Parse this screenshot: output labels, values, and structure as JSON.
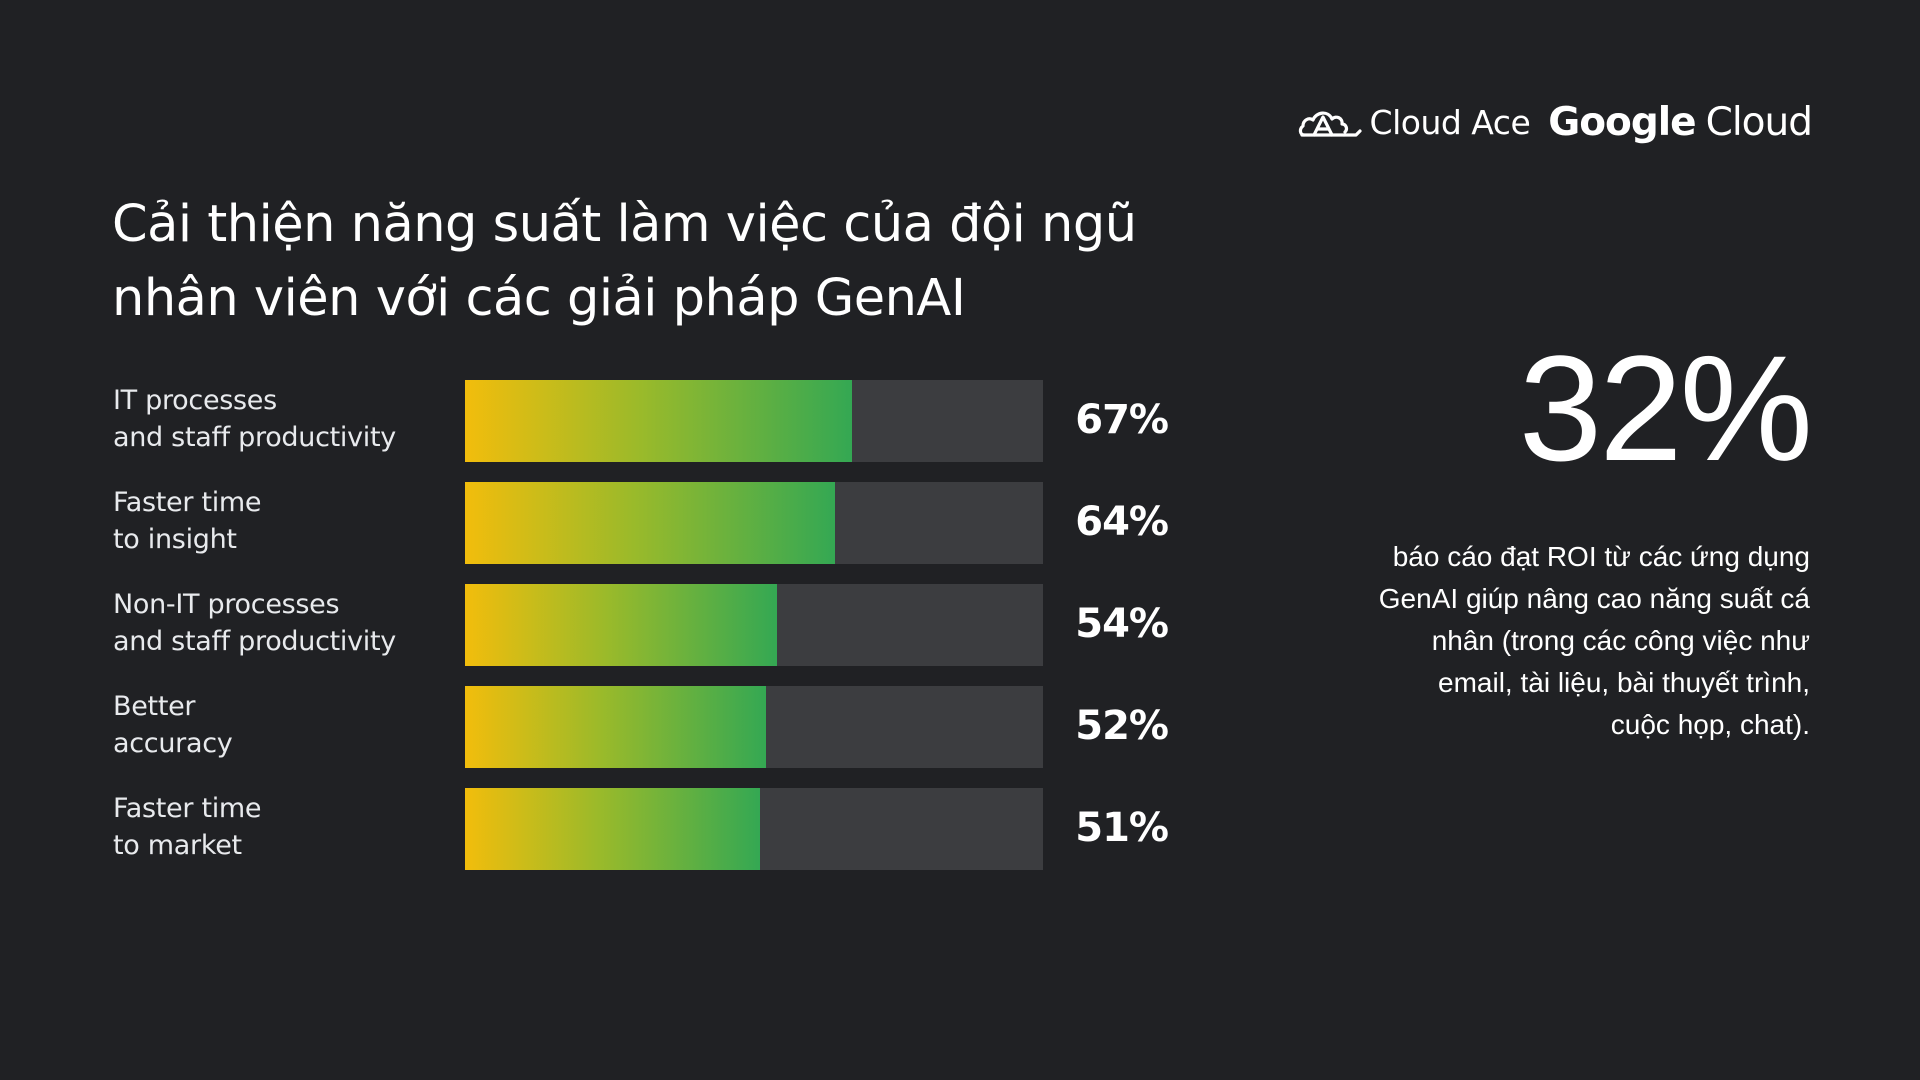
{
  "logos": {
    "cloud_ace": "Cloud Ace",
    "google": "Google",
    "cloud": "Cloud",
    "cloud_ace_icon": "cloud-ace-logo-icon"
  },
  "title_lines": [
    "Cải thiện năng suất làm việc của đội ngũ",
    "nhân viên với các giải pháp GenAI"
  ],
  "chart_data": {
    "type": "bar",
    "orientation": "horizontal",
    "categories": [
      [
        "IT processes",
        "and staff productivity"
      ],
      [
        "Faster time",
        "to insight"
      ],
      [
        "Non-IT processes",
        "and staff productivity"
      ],
      [
        "Better",
        "accuracy"
      ],
      [
        "Faster time",
        "to market"
      ]
    ],
    "values": [
      67,
      64,
      54,
      52,
      51
    ],
    "value_labels": [
      "67%",
      "64%",
      "54%",
      "52%",
      "51%"
    ],
    "xlim": [
      0,
      100
    ],
    "colors": {
      "gradient_start": "#f2bd0c",
      "gradient_mid": "#9bba2a",
      "gradient_end": "#34a853",
      "track": "#3c3d40"
    }
  },
  "highlight": {
    "value": "32%",
    "description_lines": [
      "báo cáo đạt ROI từ các ứng dụng",
      "GenAI giúp nâng cao năng suất cá",
      "nhân (trong các công việc như",
      "email, tài liệu, bài thuyết trình,",
      "cuộc họp, chat)."
    ]
  },
  "colors": {
    "background": "#202124",
    "text": "#ffffff"
  }
}
